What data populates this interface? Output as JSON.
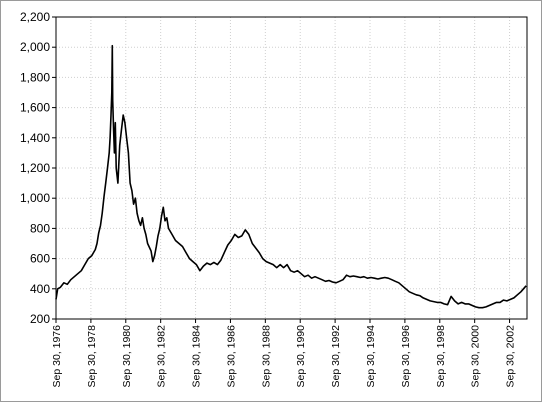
{
  "chart_data": {
    "type": "line",
    "title": "",
    "xlabel": "",
    "ylabel": "",
    "grid": true,
    "legend": "none",
    "x_range": [
      1976.75,
      2003.75
    ],
    "ylim": [
      200,
      2200
    ],
    "y_ticks": [
      {
        "value": 200,
        "label": "200"
      },
      {
        "value": 400,
        "label": "400"
      },
      {
        "value": 600,
        "label": "600"
      },
      {
        "value": 800,
        "label": "800"
      },
      {
        "value": 1000,
        "label": "1,000"
      },
      {
        "value": 1200,
        "label": "1,200"
      },
      {
        "value": 1400,
        "label": "1,400"
      },
      {
        "value": 1600,
        "label": "1,600"
      },
      {
        "value": 1800,
        "label": "1,800"
      },
      {
        "value": 2000,
        "label": "2,000"
      },
      {
        "value": 2200,
        "label": "2,200"
      }
    ],
    "x_ticks": [
      {
        "value": 1976.75,
        "label": "Sep 30, 1976"
      },
      {
        "value": 1978.75,
        "label": "Sep 30, 1978"
      },
      {
        "value": 1980.75,
        "label": "Sep 30, 1980"
      },
      {
        "value": 1982.75,
        "label": "Sep 30, 1982"
      },
      {
        "value": 1984.75,
        "label": "Sep 30, 1984"
      },
      {
        "value": 1986.75,
        "label": "Sep 30, 1986"
      },
      {
        "value": 1988.75,
        "label": "Sep 30, 1988"
      },
      {
        "value": 1990.75,
        "label": "Sep 30, 1990"
      },
      {
        "value": 1992.75,
        "label": "Sep 30, 1992"
      },
      {
        "value": 1994.75,
        "label": "Sep 30, 1994"
      },
      {
        "value": 1996.75,
        "label": "Sep 30, 1996"
      },
      {
        "value": 1998.75,
        "label": "Sep 30, 1998"
      },
      {
        "value": 2000.75,
        "label": "Sep 30, 2000"
      },
      {
        "value": 2002.75,
        "label": "Sep 30, 2002"
      }
    ],
    "series": [
      {
        "color": "#000000",
        "points": [
          [
            1976.75,
            330
          ],
          [
            1976.85,
            400
          ],
          [
            1977.0,
            410
          ],
          [
            1977.2,
            440
          ],
          [
            1977.4,
            430
          ],
          [
            1977.6,
            460
          ],
          [
            1977.8,
            480
          ],
          [
            1978.0,
            500
          ],
          [
            1978.2,
            520
          ],
          [
            1978.4,
            560
          ],
          [
            1978.6,
            600
          ],
          [
            1978.8,
            620
          ],
          [
            1979.0,
            660
          ],
          [
            1979.1,
            700
          ],
          [
            1979.2,
            770
          ],
          [
            1979.3,
            820
          ],
          [
            1979.4,
            900
          ],
          [
            1979.5,
            1010
          ],
          [
            1979.6,
            1100
          ],
          [
            1979.7,
            1200
          ],
          [
            1979.8,
            1300
          ],
          [
            1979.85,
            1400
          ],
          [
            1979.9,
            1550
          ],
          [
            1979.95,
            1700
          ],
          [
            1979.98,
            2010
          ],
          [
            1980.0,
            1650
          ],
          [
            1980.05,
            1450
          ],
          [
            1980.1,
            1300
          ],
          [
            1980.15,
            1500
          ],
          [
            1980.2,
            1200
          ],
          [
            1980.3,
            1100
          ],
          [
            1980.4,
            1350
          ],
          [
            1980.5,
            1450
          ],
          [
            1980.6,
            1550
          ],
          [
            1980.7,
            1500
          ],
          [
            1980.8,
            1400
          ],
          [
            1980.9,
            1300
          ],
          [
            1981.0,
            1100
          ],
          [
            1981.1,
            1050
          ],
          [
            1981.2,
            960
          ],
          [
            1981.3,
            1000
          ],
          [
            1981.4,
            900
          ],
          [
            1981.5,
            850
          ],
          [
            1981.6,
            820
          ],
          [
            1981.7,
            870
          ],
          [
            1981.8,
            800
          ],
          [
            1981.9,
            760
          ],
          [
            1982.0,
            700
          ],
          [
            1982.2,
            650
          ],
          [
            1982.3,
            580
          ],
          [
            1982.4,
            620
          ],
          [
            1982.5,
            680
          ],
          [
            1982.6,
            750
          ],
          [
            1982.7,
            800
          ],
          [
            1982.8,
            880
          ],
          [
            1982.9,
            940
          ],
          [
            1983.0,
            850
          ],
          [
            1983.1,
            870
          ],
          [
            1983.2,
            800
          ],
          [
            1983.4,
            760
          ],
          [
            1983.6,
            720
          ],
          [
            1983.8,
            700
          ],
          [
            1984.0,
            680
          ],
          [
            1984.2,
            640
          ],
          [
            1984.4,
            600
          ],
          [
            1984.6,
            580
          ],
          [
            1984.8,
            560
          ],
          [
            1985.0,
            520
          ],
          [
            1985.2,
            550
          ],
          [
            1985.4,
            570
          ],
          [
            1985.6,
            560
          ],
          [
            1985.8,
            575
          ],
          [
            1986.0,
            560
          ],
          [
            1986.2,
            590
          ],
          [
            1986.4,
            640
          ],
          [
            1986.6,
            690
          ],
          [
            1986.8,
            720
          ],
          [
            1987.0,
            760
          ],
          [
            1987.2,
            740
          ],
          [
            1987.4,
            750
          ],
          [
            1987.6,
            790
          ],
          [
            1987.8,
            760
          ],
          [
            1988.0,
            700
          ],
          [
            1988.2,
            670
          ],
          [
            1988.4,
            640
          ],
          [
            1988.6,
            600
          ],
          [
            1988.8,
            580
          ],
          [
            1989.0,
            570
          ],
          [
            1989.2,
            560
          ],
          [
            1989.4,
            540
          ],
          [
            1989.6,
            560
          ],
          [
            1989.8,
            540
          ],
          [
            1990.0,
            560
          ],
          [
            1990.2,
            520
          ],
          [
            1990.4,
            510
          ],
          [
            1990.6,
            520
          ],
          [
            1990.8,
            500
          ],
          [
            1991.0,
            480
          ],
          [
            1991.2,
            490
          ],
          [
            1991.4,
            470
          ],
          [
            1991.6,
            480
          ],
          [
            1991.8,
            470
          ],
          [
            1992.0,
            460
          ],
          [
            1992.2,
            450
          ],
          [
            1992.4,
            455
          ],
          [
            1992.6,
            445
          ],
          [
            1992.8,
            440
          ],
          [
            1993.0,
            450
          ],
          [
            1993.2,
            460
          ],
          [
            1993.4,
            490
          ],
          [
            1993.6,
            480
          ],
          [
            1993.8,
            485
          ],
          [
            1994.0,
            480
          ],
          [
            1994.2,
            475
          ],
          [
            1994.4,
            480
          ],
          [
            1994.6,
            470
          ],
          [
            1994.8,
            475
          ],
          [
            1995.0,
            470
          ],
          [
            1995.2,
            465
          ],
          [
            1995.4,
            470
          ],
          [
            1995.6,
            475
          ],
          [
            1995.8,
            470
          ],
          [
            1996.0,
            460
          ],
          [
            1996.2,
            450
          ],
          [
            1996.4,
            440
          ],
          [
            1996.6,
            420
          ],
          [
            1996.8,
            400
          ],
          [
            1997.0,
            380
          ],
          [
            1997.2,
            370
          ],
          [
            1997.4,
            360
          ],
          [
            1997.6,
            355
          ],
          [
            1997.8,
            340
          ],
          [
            1998.0,
            330
          ],
          [
            1998.2,
            320
          ],
          [
            1998.4,
            315
          ],
          [
            1998.6,
            310
          ],
          [
            1998.8,
            310
          ],
          [
            1999.0,
            300
          ],
          [
            1999.2,
            295
          ],
          [
            1999.4,
            350
          ],
          [
            1999.6,
            320
          ],
          [
            1999.8,
            300
          ],
          [
            2000.0,
            310
          ],
          [
            2000.2,
            300
          ],
          [
            2000.4,
            300
          ],
          [
            2000.6,
            290
          ],
          [
            2000.8,
            280
          ],
          [
            2001.0,
            275
          ],
          [
            2001.2,
            275
          ],
          [
            2001.4,
            280
          ],
          [
            2001.6,
            290
          ],
          [
            2001.8,
            300
          ],
          [
            2002.0,
            310
          ],
          [
            2002.2,
            310
          ],
          [
            2002.4,
            325
          ],
          [
            2002.6,
            320
          ],
          [
            2002.8,
            330
          ],
          [
            2003.0,
            340
          ],
          [
            2003.2,
            360
          ],
          [
            2003.4,
            380
          ],
          [
            2003.55,
            400
          ],
          [
            2003.7,
            420
          ]
        ]
      }
    ]
  }
}
